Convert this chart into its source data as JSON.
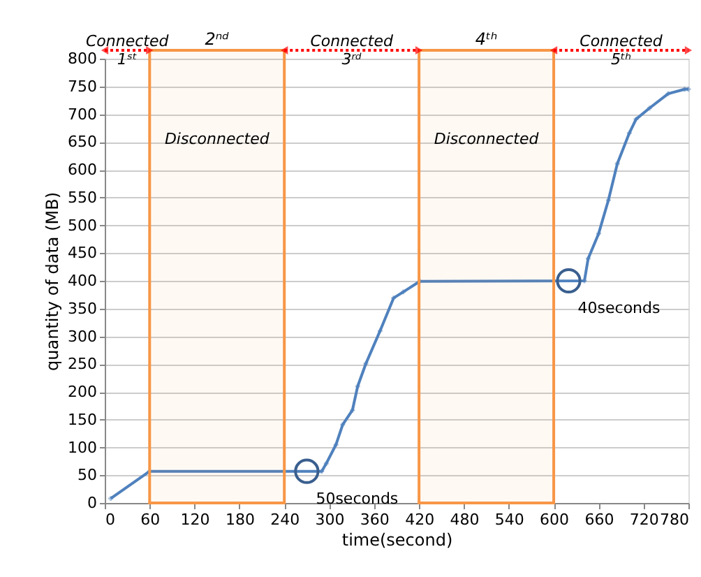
{
  "chart_data": {
    "type": "line",
    "xlabel": "time(second)",
    "ylabel": "quantity of data (MB)",
    "x": [
      8,
      60,
      290,
      296,
      309,
      318,
      331,
      338,
      349,
      368,
      386,
      399,
      421,
      641,
      646,
      660,
      673,
      685,
      701,
      710,
      728,
      753,
      775,
      780
    ],
    "series": [
      {
        "color": "#4f81bd",
        "values": [
          8,
          57,
          57,
          71,
          105,
          141,
          167,
          210,
          251,
          310,
          369,
          380,
          399,
          400,
          440,
          485,
          545,
          611,
          666,
          691,
          711,
          737,
          745,
          745
        ]
      }
    ],
    "xlim": [
      0,
      780
    ],
    "xticks": [
      0,
      60,
      120,
      180,
      240,
      300,
      360,
      420,
      480,
      540,
      600,
      660,
      720,
      780
    ],
    "ylim": [
      0,
      800
    ],
    "yticks": [
      0,
      50,
      100,
      150,
      200,
      250,
      300,
      350,
      400,
      450,
      500,
      550,
      600,
      650,
      700,
      750,
      800
    ],
    "grid": "y",
    "legend": false,
    "marker": "cross",
    "line_style": "solid",
    "bands": [
      {
        "axis": "x",
        "from": 60,
        "to": 240,
        "label": "2ⁿᵈ",
        "color": "#f79646"
      },
      {
        "axis": "x",
        "from": 420,
        "to": 600,
        "label": "4ᵗʰ",
        "color": "#f79646"
      }
    ],
    "annotations": [
      "Connected 1ˢᵗ",
      "Disconnected",
      "Connected 3ʳᵈ",
      "Disconnected",
      "Connected 5ᵗʰ",
      {
        "text": "50seconds",
        "x": 270,
        "y": 57
      },
      {
        "text": "40seconds",
        "x": 620,
        "y": 400
      }
    ]
  }
}
